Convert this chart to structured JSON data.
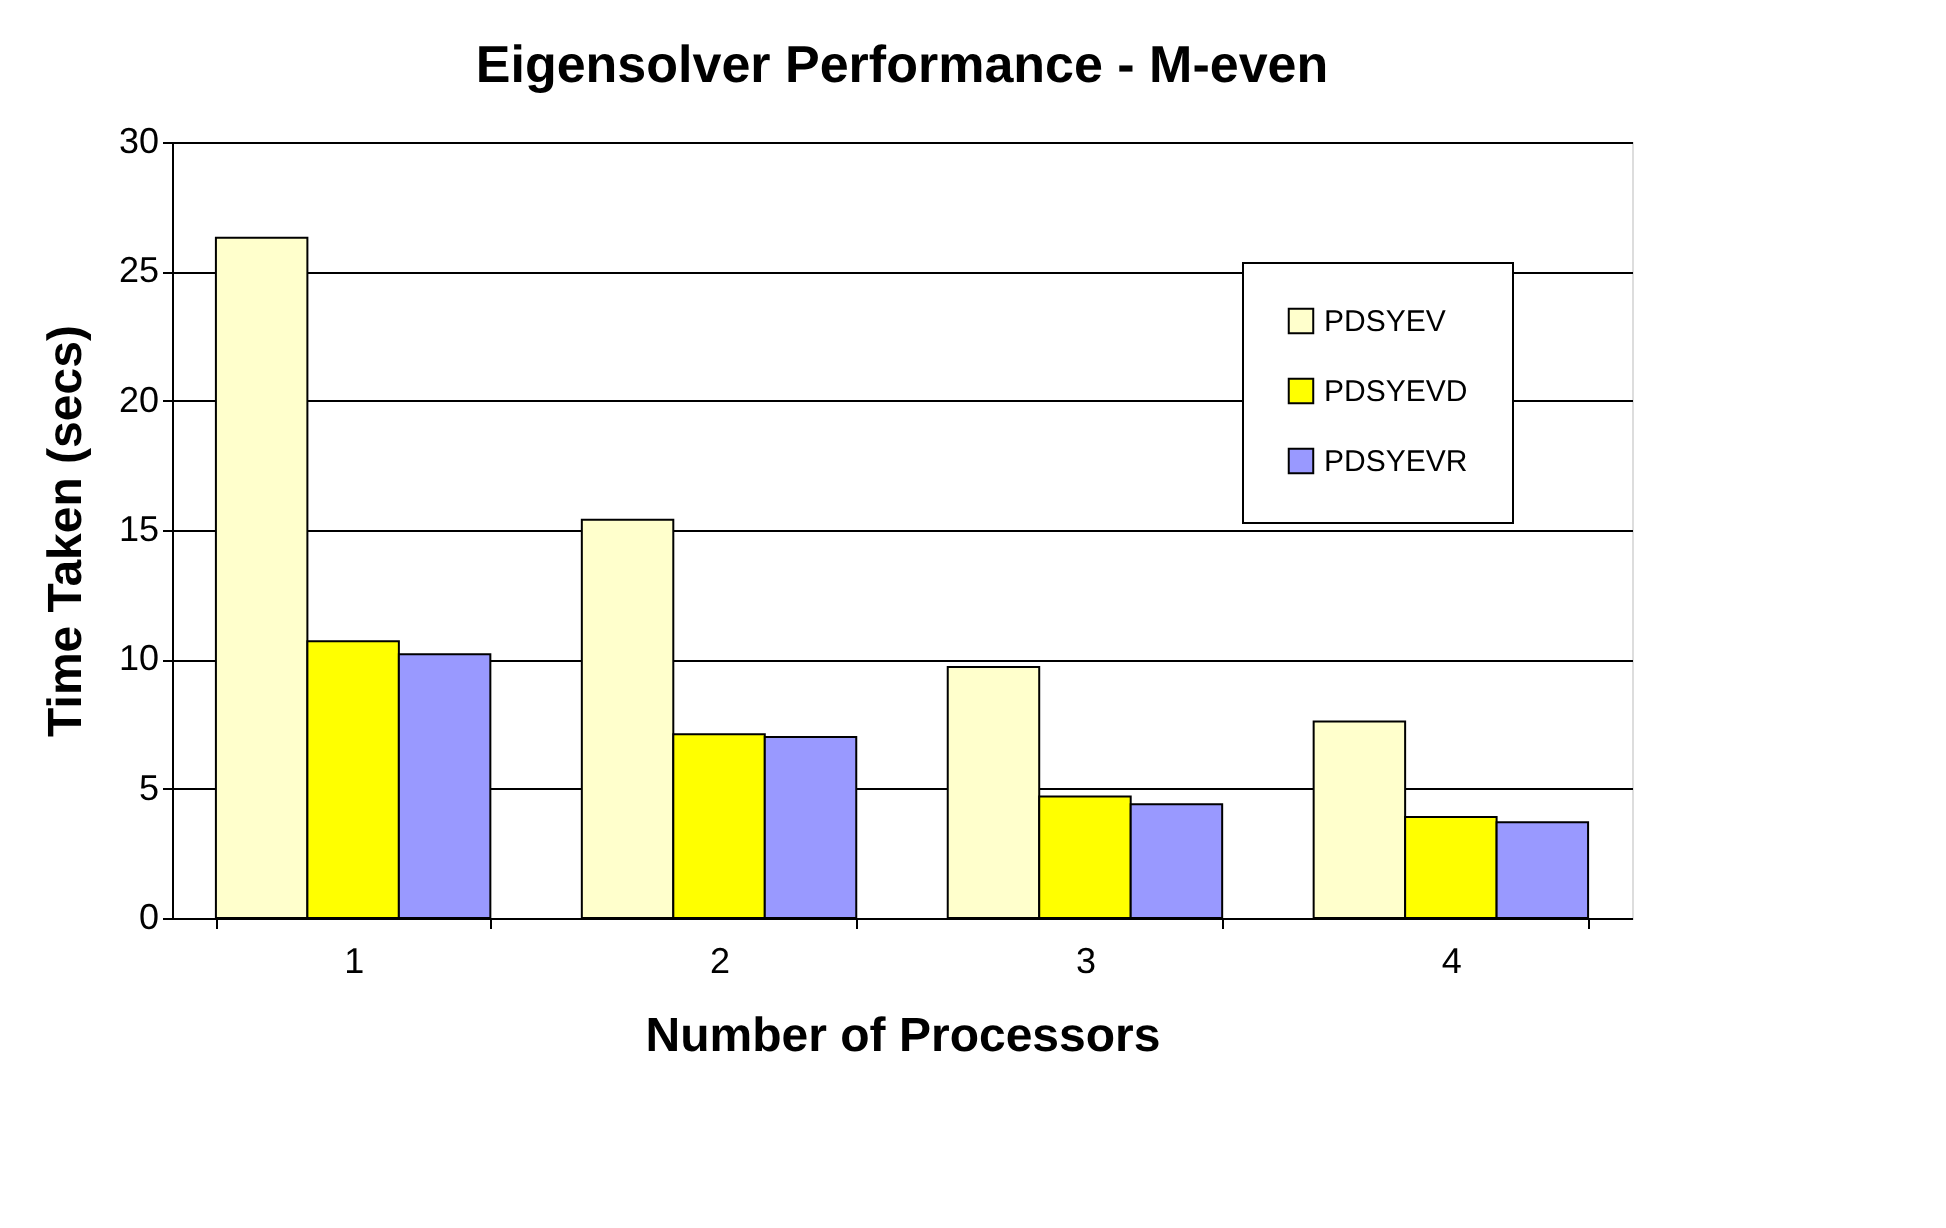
{
  "chart_data": {
    "type": "bar",
    "title": "Eigensolver Performance - M-even",
    "xlabel": "Number of Processors",
    "ylabel": "Time Taken (secs)",
    "categories": [
      "1",
      "2",
      "3",
      "4"
    ],
    "series": [
      {
        "name": "PDSYEV",
        "color": "#ffffcc",
        "values": [
          26.3,
          15.4,
          9.7,
          7.6
        ]
      },
      {
        "name": "PDSYEVD",
        "color": "#ffff00",
        "values": [
          10.7,
          7.1,
          4.7,
          3.9
        ]
      },
      {
        "name": "PDSYEVR",
        "color": "#9999ff",
        "values": [
          10.2,
          7.0,
          4.4,
          3.7
        ]
      }
    ],
    "ylim": [
      0,
      30
    ],
    "yticks": [
      0,
      5,
      10,
      15,
      20,
      25,
      30
    ],
    "grid": "y",
    "legend": "top right"
  }
}
